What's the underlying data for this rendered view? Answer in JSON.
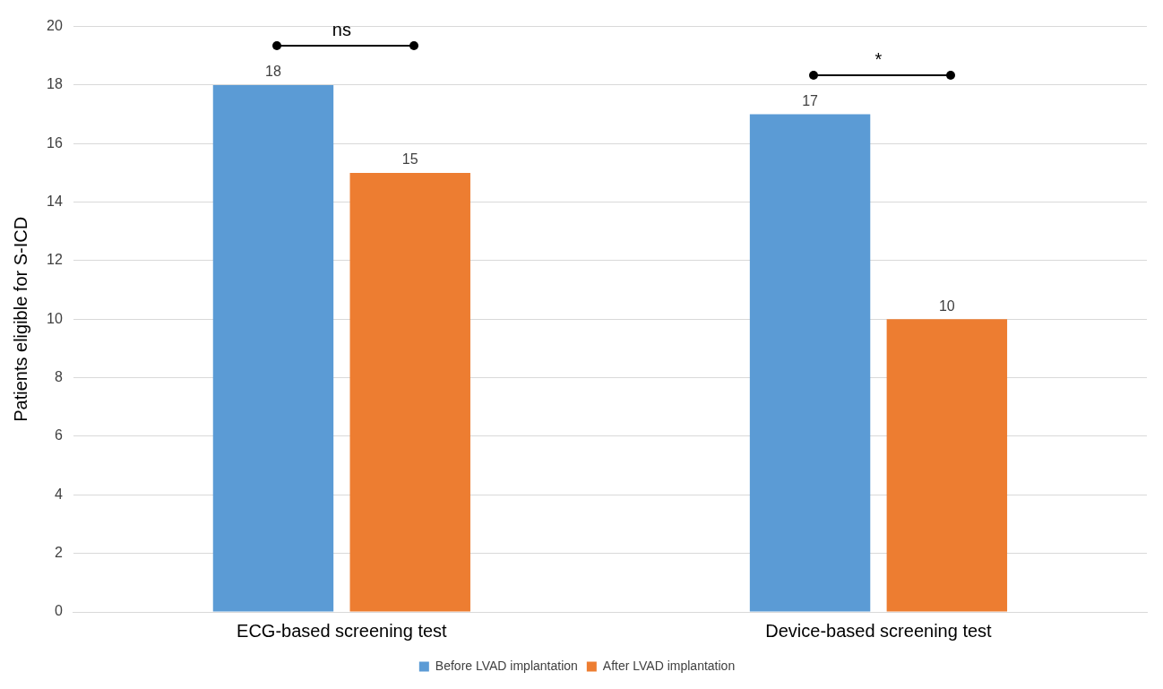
{
  "chart_data": {
    "type": "bar",
    "ylabel": "Patients eligible for S-ICD",
    "categories": [
      "ECG-based screening test",
      "Device-based screening test"
    ],
    "series": [
      {
        "name": "Before LVAD implantation",
        "color": "#5b9bd5",
        "values": [
          18,
          17
        ]
      },
      {
        "name": "After LVAD implantation",
        "color": "#ed7d31",
        "values": [
          15,
          10
        ]
      }
    ],
    "ylim": [
      0,
      20
    ],
    "yticks": [
      0,
      2,
      4,
      6,
      8,
      10,
      12,
      14,
      16,
      18,
      20
    ],
    "grid": "y",
    "legend": "bottom",
    "data_labels": true,
    "annotations": [
      "ns",
      "*"
    ]
  }
}
